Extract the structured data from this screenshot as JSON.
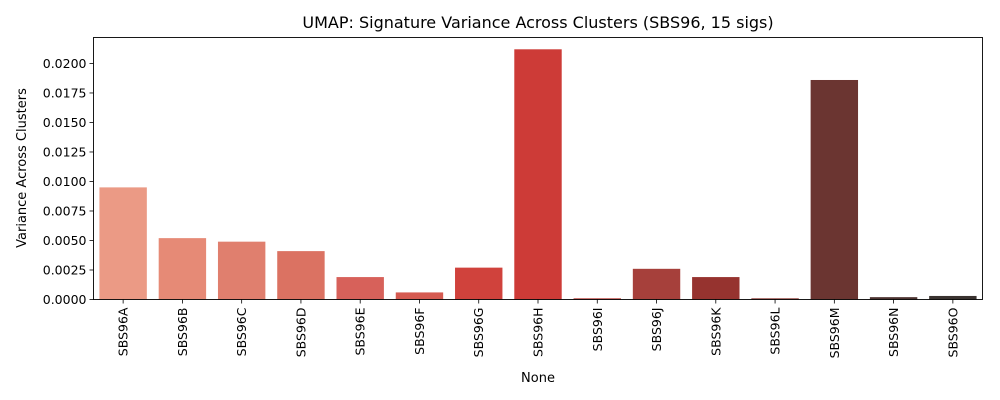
{
  "chart_data": {
    "type": "bar",
    "title": "UMAP: Signature Variance Across Clusters (SBS96, 15 sigs)",
    "xlabel": "None",
    "ylabel": "Variance Across Clusters",
    "ylim": [
      0,
      0.0222
    ],
    "yticks": [
      "0.0000",
      "0.0025",
      "0.0050",
      "0.0075",
      "0.0100",
      "0.0125",
      "0.0150",
      "0.0175",
      "0.0200"
    ],
    "grid": false,
    "categories": [
      "SBS96A",
      "SBS96B",
      "SBS96C",
      "SBS96D",
      "SBS96E",
      "SBS96F",
      "SBS96G",
      "SBS96H",
      "SBS96I",
      "SBS96J",
      "SBS96K",
      "SBS96L",
      "SBS96M",
      "SBS96N",
      "SBS96O"
    ],
    "values": [
      0.0095,
      0.0052,
      0.0049,
      0.0041,
      0.0019,
      0.0006,
      0.0027,
      0.0212,
      0.0001,
      0.0026,
      0.0019,
      0.0001,
      0.0186,
      0.0002,
      0.0003
    ],
    "colors": [
      "#eb9a85",
      "#e68a76",
      "#e07f6e",
      "#db7262",
      "#d7615a",
      "#d55a50",
      "#d0423c",
      "#cd3b37",
      "#b83934",
      "#a6403b",
      "#96332f",
      "#8a3530",
      "#6b3531",
      "#4e3431",
      "#3a3330"
    ]
  }
}
